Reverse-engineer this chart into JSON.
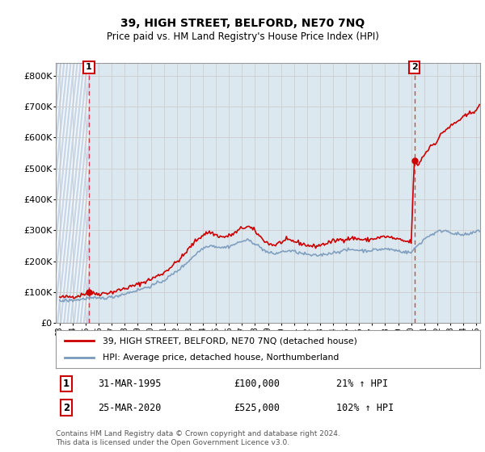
{
  "title": "39, HIGH STREET, BELFORD, NE70 7NQ",
  "subtitle": "Price paid vs. HM Land Registry's House Price Index (HPI)",
  "legend_line1": "39, HIGH STREET, BELFORD, NE70 7NQ (detached house)",
  "legend_line2": "HPI: Average price, detached house, Northumberland",
  "footnote": "Contains HM Land Registry data © Crown copyright and database right 2024.\nThis data is licensed under the Open Government Licence v3.0.",
  "marker1_date": "31-MAR-1995",
  "marker1_price": "£100,000",
  "marker1_hpi": "21% ↑ HPI",
  "marker2_date": "25-MAR-2020",
  "marker2_price": "£525,000",
  "marker2_hpi": "102% ↑ HPI",
  "red_color": "#cc0000",
  "blue_color": "#7799bb",
  "grid_color": "#cccccc",
  "bg_color": "#ffffff",
  "plot_bg_color": "#dce8f0",
  "hatch_bg_color": "#c8d8e8",
  "ylim": [
    0,
    840000
  ],
  "yticks": [
    0,
    100000,
    200000,
    300000,
    400000,
    500000,
    600000,
    700000,
    800000
  ],
  "xlim_start": 1992.7,
  "xlim_end": 2025.3,
  "xtick_years": [
    1993,
    1994,
    1995,
    1996,
    1997,
    1998,
    1999,
    2000,
    2001,
    2002,
    2003,
    2004,
    2005,
    2006,
    2007,
    2008,
    2009,
    2010,
    2011,
    2012,
    2013,
    2014,
    2015,
    2016,
    2017,
    2018,
    2019,
    2020,
    2021,
    2022,
    2023,
    2024,
    2025
  ],
  "sale1_x": 1995.24,
  "sale1_y": 100000,
  "sale2_x": 2020.24,
  "sale2_y": 525000,
  "hatch_x_end": 1995.24
}
